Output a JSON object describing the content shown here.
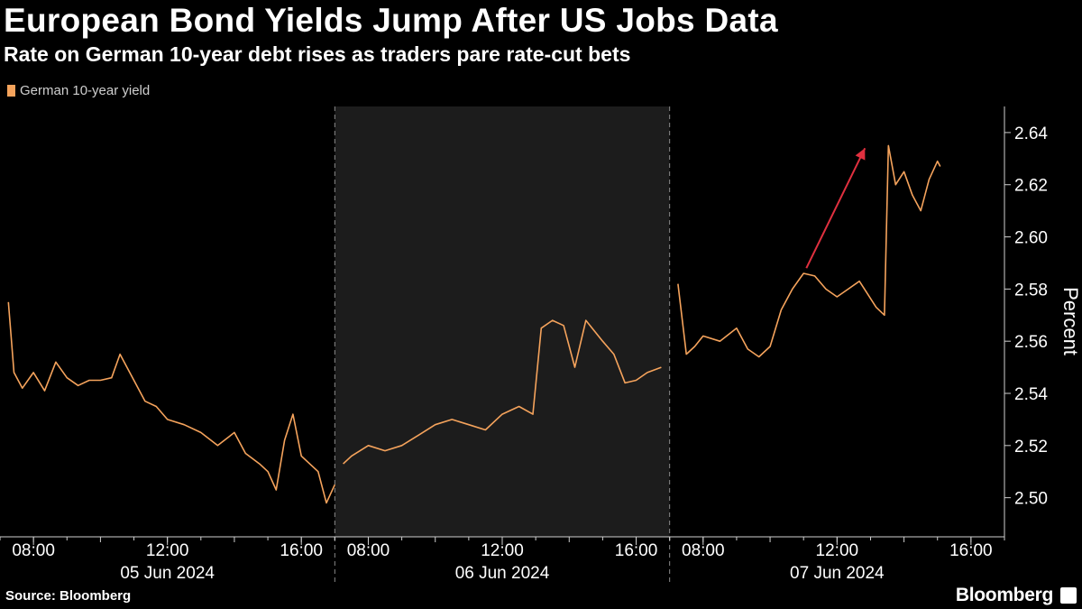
{
  "title": "European Bond Yields Jump After US Jobs Data",
  "subtitle": "Rate on German 10-year debt rises as traders pare rate-cut bets",
  "legend": {
    "label": "German 10-year yield",
    "color": "#f5a35c"
  },
  "source": "Source: Bloomberg",
  "brand": "Bloomberg",
  "chart_data": {
    "type": "line",
    "title": "European Bond Yields Jump After US Jobs Data",
    "subtitle": "Rate on German 10-year debt rises as traders pare rate-cut bets",
    "ylabel": "Percent",
    "ylim": [
      2.485,
      2.65
    ],
    "y_ticks": [
      2.5,
      2.52,
      2.54,
      2.56,
      2.58,
      2.6,
      2.62,
      2.64
    ],
    "y_tick_labels": [
      "2.50",
      "2.52",
      "2.54",
      "2.56",
      "2.58",
      "2.60",
      "2.62",
      "2.64"
    ],
    "y_axis_side": "right",
    "grid": false,
    "legend_position": "top-left",
    "line_color": "#f5a35c",
    "highlight_color": "#1c1c1c",
    "annotation": {
      "type": "arrow",
      "color": "#e0303f",
      "from": [
        "2024-06-07 11:05",
        2.588
      ],
      "to": [
        "2024-06-07 12:50",
        2.634
      ]
    },
    "days": [
      {
        "label": "05 Jun 2024",
        "start": "2024-06-05 07:00",
        "end": "2024-06-05 17:00",
        "shaded": false
      },
      {
        "label": "06 Jun 2024",
        "start": "2024-06-06 07:00",
        "end": "2024-06-06 17:00",
        "shaded": true
      },
      {
        "label": "07 Jun 2024",
        "start": "2024-06-07 07:00",
        "end": "2024-06-07 17:00",
        "shaded": false
      }
    ],
    "x_ticks": [
      {
        "label": "08:00",
        "time": "2024-06-05 08:00"
      },
      {
        "label": "12:00",
        "time": "2024-06-05 12:00"
      },
      {
        "label": "16:00",
        "time": "2024-06-05 16:00"
      },
      {
        "label": "08:00",
        "time": "2024-06-06 08:00"
      },
      {
        "label": "12:00",
        "time": "2024-06-06 12:00"
      },
      {
        "label": "16:00",
        "time": "2024-06-06 16:00"
      },
      {
        "label": "08:00",
        "time": "2024-06-07 08:00"
      },
      {
        "label": "12:00",
        "time": "2024-06-07 12:00"
      },
      {
        "label": "16:00",
        "time": "2024-06-07 16:00"
      }
    ],
    "series": [
      {
        "name": "German 10-year yield",
        "points": [
          [
            "2024-06-05 07:15",
            2.575
          ],
          [
            "2024-06-05 07:25",
            2.548
          ],
          [
            "2024-06-05 07:40",
            2.542
          ],
          [
            "2024-06-05 08:00",
            2.548
          ],
          [
            "2024-06-05 08:20",
            2.541
          ],
          [
            "2024-06-05 08:40",
            2.552
          ],
          [
            "2024-06-05 09:00",
            2.546
          ],
          [
            "2024-06-05 09:20",
            2.543
          ],
          [
            "2024-06-05 09:40",
            2.545
          ],
          [
            "2024-06-05 10:00",
            2.545
          ],
          [
            "2024-06-05 10:20",
            2.546
          ],
          [
            "2024-06-05 10:35",
            2.555
          ],
          [
            "2024-06-05 11:00",
            2.545
          ],
          [
            "2024-06-05 11:20",
            2.537
          ],
          [
            "2024-06-05 11:40",
            2.535
          ],
          [
            "2024-06-05 12:00",
            2.53
          ],
          [
            "2024-06-05 12:30",
            2.528
          ],
          [
            "2024-06-05 13:00",
            2.525
          ],
          [
            "2024-06-05 13:30",
            2.52
          ],
          [
            "2024-06-05 14:00",
            2.525
          ],
          [
            "2024-06-05 14:20",
            2.517
          ],
          [
            "2024-06-05 14:45",
            2.513
          ],
          [
            "2024-06-05 15:00",
            2.51
          ],
          [
            "2024-06-05 15:15",
            2.503
          ],
          [
            "2024-06-05 15:30",
            2.522
          ],
          [
            "2024-06-05 15:45",
            2.532
          ],
          [
            "2024-06-05 16:00",
            2.516
          ],
          [
            "2024-06-05 16:15",
            2.513
          ],
          [
            "2024-06-05 16:30",
            2.51
          ],
          [
            "2024-06-05 16:45",
            2.498
          ],
          [
            "2024-06-05 17:00",
            2.505
          ],
          [
            "2024-06-06 07:15",
            2.513
          ],
          [
            "2024-06-06 07:30",
            2.516
          ],
          [
            "2024-06-06 08:00",
            2.52
          ],
          [
            "2024-06-06 08:30",
            2.518
          ],
          [
            "2024-06-06 09:00",
            2.52
          ],
          [
            "2024-06-06 09:30",
            2.524
          ],
          [
            "2024-06-06 10:00",
            2.528
          ],
          [
            "2024-06-06 10:30",
            2.53
          ],
          [
            "2024-06-06 11:00",
            2.528
          ],
          [
            "2024-06-06 11:30",
            2.526
          ],
          [
            "2024-06-06 12:00",
            2.532
          ],
          [
            "2024-06-06 12:30",
            2.535
          ],
          [
            "2024-06-06 12:55",
            2.532
          ],
          [
            "2024-06-06 13:10",
            2.565
          ],
          [
            "2024-06-06 13:30",
            2.568
          ],
          [
            "2024-06-06 13:50",
            2.566
          ],
          [
            "2024-06-06 14:10",
            2.55
          ],
          [
            "2024-06-06 14:30",
            2.568
          ],
          [
            "2024-06-06 15:00",
            2.56
          ],
          [
            "2024-06-06 15:20",
            2.555
          ],
          [
            "2024-06-06 15:40",
            2.544
          ],
          [
            "2024-06-06 16:00",
            2.545
          ],
          [
            "2024-06-06 16:20",
            2.548
          ],
          [
            "2024-06-06 16:45",
            2.55
          ],
          [
            "2024-06-07 07:15",
            2.582
          ],
          [
            "2024-06-07 07:30",
            2.555
          ],
          [
            "2024-06-07 07:45",
            2.558
          ],
          [
            "2024-06-07 08:00",
            2.562
          ],
          [
            "2024-06-07 08:30",
            2.56
          ],
          [
            "2024-06-07 09:00",
            2.565
          ],
          [
            "2024-06-07 09:20",
            2.557
          ],
          [
            "2024-06-07 09:40",
            2.554
          ],
          [
            "2024-06-07 10:00",
            2.558
          ],
          [
            "2024-06-07 10:20",
            2.572
          ],
          [
            "2024-06-07 10:40",
            2.58
          ],
          [
            "2024-06-07 11:00",
            2.586
          ],
          [
            "2024-06-07 11:20",
            2.585
          ],
          [
            "2024-06-07 11:40",
            2.58
          ],
          [
            "2024-06-07 12:00",
            2.577
          ],
          [
            "2024-06-07 12:20",
            2.58
          ],
          [
            "2024-06-07 12:40",
            2.583
          ],
          [
            "2024-06-07 12:55",
            2.578
          ],
          [
            "2024-06-07 13:10",
            2.573
          ],
          [
            "2024-06-07 13:25",
            2.57
          ],
          [
            "2024-06-07 13:32",
            2.635
          ],
          [
            "2024-06-07 13:45",
            2.62
          ],
          [
            "2024-06-07 14:00",
            2.625
          ],
          [
            "2024-06-07 14:15",
            2.616
          ],
          [
            "2024-06-07 14:30",
            2.61
          ],
          [
            "2024-06-07 14:45",
            2.622
          ],
          [
            "2024-06-07 15:00",
            2.629
          ],
          [
            "2024-06-07 15:05",
            2.627
          ]
        ]
      }
    ]
  }
}
